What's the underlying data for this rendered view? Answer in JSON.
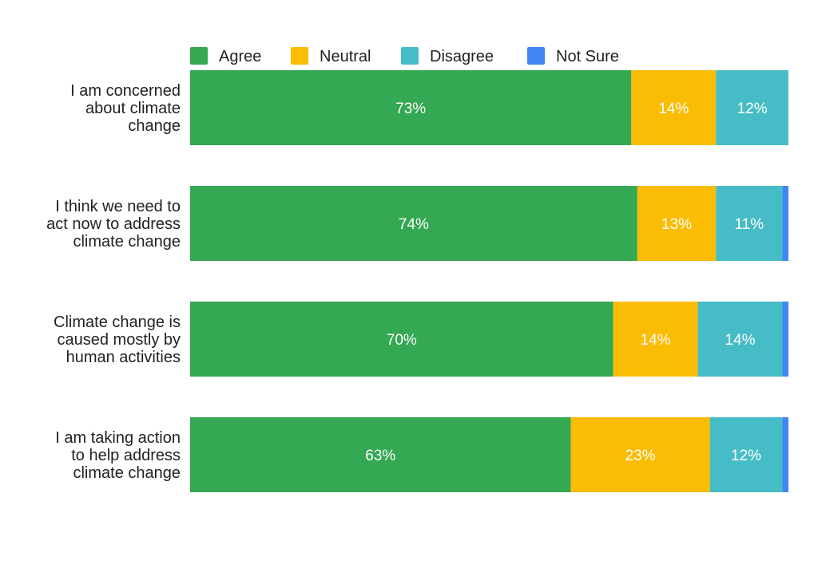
{
  "chart_data": {
    "type": "bar",
    "orientation": "horizontal",
    "stacked": true,
    "stack_mode": "percent",
    "categories": [
      [
        "I am concerned",
        "about climate",
        "change"
      ],
      [
        "I think we need to",
        "act now to address",
        "climate change"
      ],
      [
        "Climate change is",
        "caused mostly by",
        "human activities"
      ],
      [
        "I am taking action",
        "to help address",
        "climate change"
      ]
    ],
    "series": [
      {
        "name": "Agree",
        "color": "#34a853",
        "values": [
          73,
          74,
          70,
          63
        ],
        "labels": [
          "73%",
          "74%",
          "70%",
          "63%"
        ]
      },
      {
        "name": "Neutral",
        "color": "#fbbc04",
        "values": [
          14,
          13,
          14,
          23
        ],
        "labels": [
          "14%",
          "13%",
          "14%",
          "23%"
        ]
      },
      {
        "name": "Disagree",
        "color": "#46bdc6",
        "values": [
          12,
          11,
          14,
          12
        ],
        "labels": [
          "12%",
          "11%",
          "14%",
          "12%"
        ]
      },
      {
        "name": "Not Sure",
        "color": "#4285f4",
        "values": [
          0,
          1,
          1,
          1
        ],
        "labels": [
          "",
          "",
          "",
          ""
        ]
      }
    ],
    "legend_position": "top",
    "grid": false,
    "xlim": [
      0,
      100
    ]
  }
}
